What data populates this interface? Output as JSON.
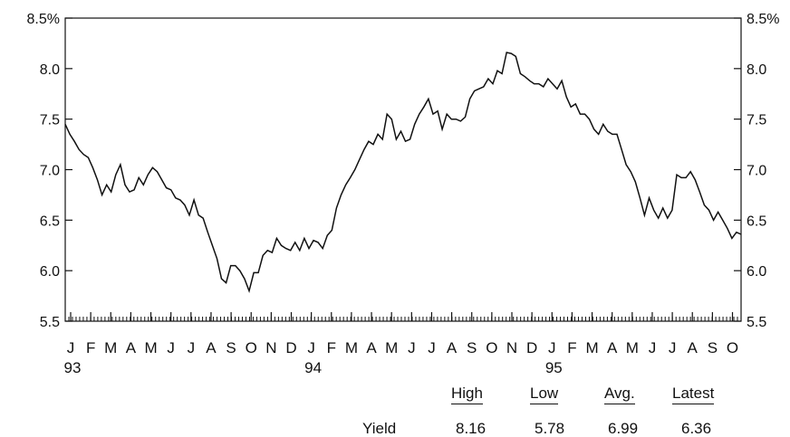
{
  "chart_data": {
    "type": "line",
    "title": "",
    "xlabel": "",
    "ylabel": "",
    "ylim": [
      5.5,
      8.5
    ],
    "y_ticks": [
      "5.5",
      "6.0",
      "6.5",
      "7.0",
      "7.5",
      "8.0",
      "8.5%"
    ],
    "month_labels": [
      "J",
      "F",
      "M",
      "A",
      "M",
      "J",
      "J",
      "A",
      "S",
      "O",
      "N",
      "D",
      "J",
      "F",
      "M",
      "A",
      "M",
      "J",
      "J",
      "A",
      "S",
      "O",
      "N",
      "D",
      "J",
      "F",
      "M",
      "A",
      "M",
      "J",
      "J",
      "A",
      "S",
      "O"
    ],
    "year_labels": [
      "93",
      "94",
      "95"
    ],
    "grid": false,
    "series": [
      {
        "values": [
          7.45,
          7.35,
          7.28,
          7.2,
          7.15,
          7.12,
          7.02,
          6.9,
          6.75,
          6.85,
          6.78,
          6.95,
          7.05,
          6.85,
          6.78,
          6.8,
          6.92,
          6.85,
          6.95,
          7.02,
          6.98,
          6.9,
          6.82,
          6.8,
          6.72,
          6.7,
          6.65,
          6.55,
          6.7,
          6.55,
          6.52,
          6.38,
          6.25,
          6.12,
          5.92,
          5.88,
          6.05,
          6.05,
          6.0,
          5.92,
          5.8,
          5.98,
          5.98,
          6.15,
          6.2,
          6.18,
          6.32,
          6.25,
          6.22,
          6.2,
          6.28,
          6.2,
          6.32,
          6.22,
          6.3,
          6.28,
          6.22,
          6.35,
          6.4,
          6.62,
          6.75,
          6.85,
          6.92,
          7.0,
          7.1,
          7.2,
          7.28,
          7.25,
          7.35,
          7.3,
          7.55,
          7.5,
          7.3,
          7.38,
          7.28,
          7.3,
          7.45,
          7.55,
          7.62,
          7.7,
          7.55,
          7.58,
          7.4,
          7.55,
          7.5,
          7.5,
          7.48,
          7.52,
          7.7,
          7.78,
          7.8,
          7.82,
          7.9,
          7.85,
          7.98,
          7.95,
          8.16,
          8.15,
          8.12,
          7.95,
          7.92,
          7.88,
          7.85,
          7.85,
          7.82,
          7.9,
          7.85,
          7.8,
          7.88,
          7.72,
          7.62,
          7.65,
          7.55,
          7.55,
          7.5,
          7.4,
          7.35,
          7.45,
          7.38,
          7.35,
          7.35,
          7.2,
          7.05,
          6.98,
          6.88,
          6.72,
          6.55,
          6.72,
          6.6,
          6.52,
          6.62,
          6.52,
          6.6,
          6.95,
          6.92,
          6.92,
          6.98,
          6.9,
          6.78,
          6.65,
          6.6,
          6.5,
          6.58,
          6.5,
          6.42,
          6.32,
          6.38,
          6.36
        ]
      }
    ]
  },
  "stats": {
    "headers": [
      "High",
      "Low",
      "Avg.",
      "Latest"
    ],
    "row_label": "Yield",
    "values": [
      "8.16",
      "5.78",
      "6.99",
      "6.36"
    ]
  }
}
